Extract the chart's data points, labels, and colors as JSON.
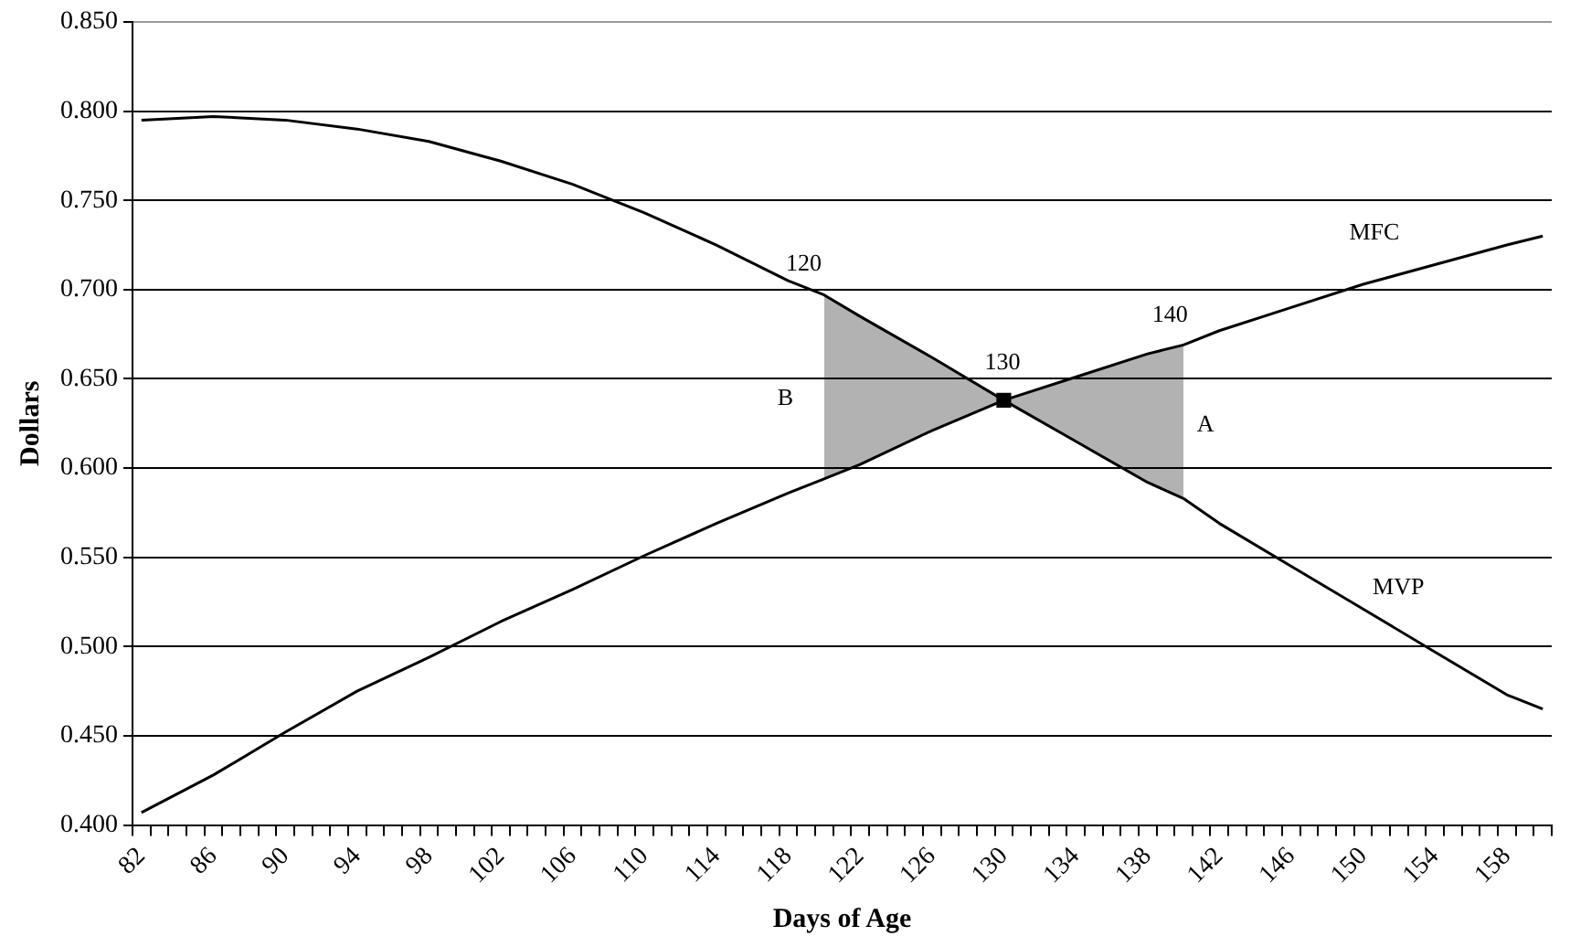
{
  "chart_data": {
    "type": "line",
    "xlabel": "Days of Age",
    "ylabel": "Dollars",
    "categories": [
      "82",
      null,
      null,
      null,
      "86",
      null,
      null,
      null,
      "90",
      null,
      null,
      null,
      "94",
      null,
      null,
      null,
      "98",
      null,
      null,
      null,
      "102",
      null,
      null,
      null,
      "106",
      null,
      null,
      null,
      "110",
      null,
      null,
      null,
      "114",
      null,
      null,
      null,
      "118",
      null,
      null,
      null,
      "122",
      null,
      null,
      null,
      "126",
      null,
      null,
      null,
      "130",
      null,
      null,
      null,
      "134",
      null,
      null,
      null,
      "138",
      null,
      null,
      null,
      "142",
      null,
      null,
      null,
      "146",
      null,
      null,
      null,
      "150",
      null,
      null,
      null,
      "154",
      null,
      null,
      null,
      "158",
      null,
      null
    ],
    "ylim": [
      0.4,
      0.85
    ],
    "yticks": [
      {
        "value": 0.4,
        "label": "0.400"
      },
      {
        "value": 0.45,
        "label": "0.450"
      },
      {
        "value": 0.5,
        "label": "0.500"
      },
      {
        "value": 0.55,
        "label": "0.550"
      },
      {
        "value": 0.6,
        "label": "0.600"
      },
      {
        "value": 0.65,
        "label": "0.650"
      },
      {
        "value": 0.7,
        "label": "0.700"
      },
      {
        "value": 0.75,
        "label": "0.750"
      },
      {
        "value": 0.8,
        "label": "0.800"
      },
      {
        "value": 0.85,
        "label": "0.850"
      }
    ],
    "grid": "y",
    "legend": false,
    "marker": "none",
    "line_style": "solid",
    "series": [
      {
        "color": "#000000",
        "values": [
          0.795,
          null,
          null,
          null,
          0.797,
          null,
          null,
          null,
          0.795,
          null,
          null,
          null,
          0.79,
          null,
          null,
          null,
          0.783,
          null,
          null,
          null,
          0.772,
          null,
          null,
          null,
          0.759,
          null,
          null,
          null,
          0.743,
          null,
          null,
          null,
          0.725,
          null,
          null,
          null,
          0.705,
          null,
          0.697,
          null,
          0.685,
          null,
          null,
          null,
          0.662,
          null,
          null,
          null,
          0.638,
          null,
          null,
          null,
          0.615,
          null,
          null,
          null,
          0.592,
          null,
          0.583,
          null,
          0.569,
          null,
          null,
          null,
          0.545,
          null,
          null,
          null,
          0.521,
          null,
          null,
          null,
          0.497,
          null,
          null,
          null,
          0.473,
          null,
          0.465
        ],
        "lower": [
          null,
          null,
          null,
          null,
          null,
          null,
          null,
          null,
          null,
          null,
          null,
          null,
          null,
          null,
          null,
          null,
          null,
          null,
          null,
          null,
          null,
          null,
          null,
          null,
          null,
          null,
          null,
          null,
          null,
          null,
          null,
          null,
          null,
          null,
          null,
          null,
          null,
          null,
          0.594,
          null,
          0.602,
          null,
          null,
          null,
          0.621,
          null,
          null,
          null,
          0.638,
          null,
          null,
          null,
          0.615,
          null,
          null,
          null,
          0.592,
          null,
          0.583,
          null,
          null,
          null,
          null,
          null,
          null,
          null,
          null,
          null,
          null,
          null,
          null,
          null,
          null,
          null,
          null,
          null,
          null,
          null,
          null
        ],
        "upper": [
          null,
          null,
          null,
          null,
          null,
          null,
          null,
          null,
          null,
          null,
          null,
          null,
          null,
          null,
          null,
          null,
          null,
          null,
          null,
          null,
          null,
          null,
          null,
          null,
          null,
          null,
          null,
          null,
          null,
          null,
          null,
          null,
          null,
          null,
          null,
          null,
          null,
          null,
          0.697,
          null,
          0.685,
          null,
          null,
          null,
          0.662,
          null,
          null,
          null,
          0.638,
          null,
          null,
          null,
          0.651,
          null,
          null,
          null,
          0.664,
          null,
          0.669,
          null,
          null,
          null,
          null,
          null,
          null,
          null,
          null,
          null,
          null,
          null,
          null,
          null,
          null,
          null,
          null,
          null,
          null,
          null,
          null
        ]
      },
      {
        "color": "#000000",
        "values": [
          0.407,
          null,
          null,
          null,
          0.428,
          null,
          null,
          null,
          0.452,
          null,
          null,
          null,
          0.475,
          null,
          null,
          null,
          0.494,
          null,
          null,
          null,
          0.514,
          null,
          null,
          null,
          0.532,
          null,
          null,
          null,
          0.551,
          null,
          null,
          null,
          0.569,
          null,
          null,
          null,
          0.586,
          null,
          0.594,
          null,
          0.602,
          null,
          null,
          null,
          0.621,
          null,
          null,
          null,
          0.638,
          null,
          null,
          null,
          0.651,
          null,
          null,
          null,
          0.664,
          null,
          0.669,
          null,
          0.677,
          null,
          null,
          null,
          0.69,
          null,
          null,
          null,
          0.703,
          null,
          null,
          null,
          0.714,
          null,
          null,
          null,
          0.725,
          null,
          0.73
        ]
      },
      {
        "type": "scatter",
        "color": "#000000",
        "marker": "square",
        "values": [
          null,
          null,
          null,
          null,
          null,
          null,
          null,
          null,
          null,
          null,
          null,
          null,
          null,
          null,
          null,
          null,
          null,
          null,
          null,
          null,
          null,
          null,
          null,
          null,
          null,
          null,
          null,
          null,
          null,
          null,
          null,
          null,
          null,
          null,
          null,
          null,
          null,
          null,
          null,
          null,
          null,
          null,
          null,
          null,
          null,
          null,
          null,
          null,
          0.638,
          null,
          null,
          null,
          null,
          null,
          null,
          null,
          null,
          null,
          null,
          null,
          null,
          null,
          null,
          null,
          null,
          null,
          null,
          null,
          null,
          null,
          null,
          null,
          null,
          null,
          null,
          null,
          null,
          null,
          null
        ]
      }
    ],
    "annotations": [
      "120",
      "130",
      "140",
      "B",
      "A",
      "MFC",
      "MVP"
    ]
  }
}
